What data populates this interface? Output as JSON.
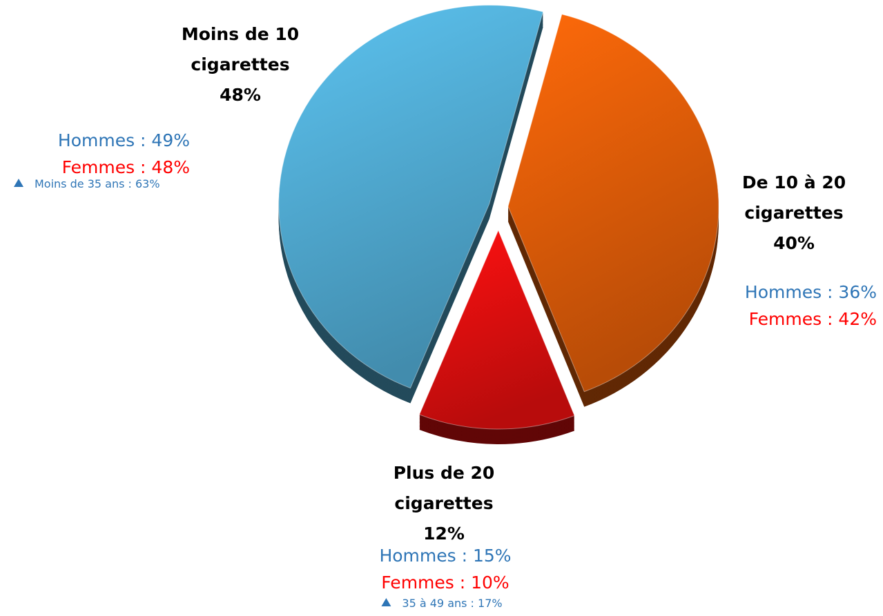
{
  "chart_data": {
    "type": "pie",
    "categories": [
      "Moins de 10 cigarettes",
      "De 10 à 20 cigarettes",
      "Plus de 20 cigarettes"
    ],
    "values": [
      48,
      40,
      12
    ],
    "value_labels": [
      "48%",
      "40%",
      "12%"
    ],
    "colors": [
      "#5cc3f0",
      "#ff6a0a",
      "#ff1111"
    ],
    "hommes_color": "#2e75b6",
    "femmes_color": "#ff0000",
    "annotations": [
      {
        "hommes": "Hommes : 49%",
        "femmes": "Femmes : 48%",
        "note": "Moins de 35 ans : 63%"
      },
      {
        "hommes": "Hommes : 36%",
        "femmes": "Femmes : 42%"
      },
      {
        "hommes": "Hommes : 15%",
        "femmes": "Femmes : 10%",
        "note": "35 à 49 ans : 17%"
      }
    ]
  }
}
